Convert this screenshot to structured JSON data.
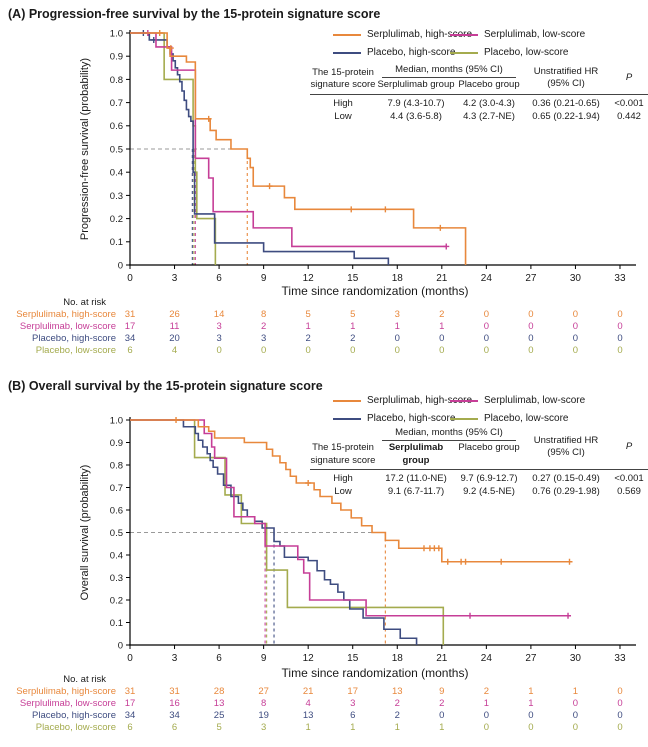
{
  "colors": {
    "serp_high": "#E8883C",
    "serp_low": "#C63E97",
    "plac_high": "#3E4C80",
    "plac_low": "#A4AB4E",
    "guide": "#999999",
    "text": "#1a1a1a"
  },
  "x_axis": {
    "label": "Time since randomization (months)",
    "ticks": [
      0,
      3,
      6,
      9,
      12,
      15,
      18,
      21,
      24,
      27,
      30,
      33
    ]
  },
  "y_axis": {
    "ticks": [
      "1.0",
      "0.9",
      "0.8",
      "0.7",
      "0.6",
      "0.5",
      "0.4",
      "0.3",
      "0.2",
      "0.1",
      "0"
    ]
  },
  "risk_header": "No. at risk",
  "legend": [
    {
      "label": "Serplulimab, high-score",
      "color_key": "serp_high"
    },
    {
      "label": "Serplulimab, low-score",
      "color_key": "serp_low"
    },
    {
      "label": "Placebo, high-score",
      "color_key": "plac_high"
    },
    {
      "label": "Placebo, low-score",
      "color_key": "plac_low"
    }
  ],
  "panels": [
    {
      "title": "(A) Progression-free survival by the 15-protein signature score",
      "y_label": "Progression-free survival (probability)",
      "table": {
        "stub_line1": "The 15-protein",
        "stub_line2": "signature score",
        "median_header": "Median, months (95% CI)",
        "col_serp": "Serplulimab group",
        "col_plac": "Placebo group",
        "hr_line1": "Unstratified HR",
        "hr_line2": "(95% CI)",
        "p_header": "P",
        "rows": [
          {
            "label": "High",
            "serp": "7.9 (4.3-10.7)",
            "plac": "4.2 (3.0-4.3)",
            "hr": "0.36 (0.21-0.65)",
            "p": "<0.001"
          },
          {
            "label": "Low",
            "serp": "4.4 (3.6-5.8)",
            "plac": "4.3 (2.7-NE)",
            "hr": "0.65 (0.22-1.94)",
            "p": "0.442"
          }
        ]
      },
      "risk_rows": [
        {
          "label": "Serplulimab, high-score",
          "color_key": "serp_high",
          "values": [
            31,
            26,
            14,
            8,
            5,
            5,
            3,
            2,
            0,
            0,
            0,
            0
          ]
        },
        {
          "label": "Serplulimab, low-score",
          "color_key": "serp_low",
          "values": [
            17,
            11,
            3,
            2,
            1,
            1,
            1,
            1,
            0,
            0,
            0,
            0
          ]
        },
        {
          "label": "Placebo, high-score",
          "color_key": "plac_high",
          "values": [
            34,
            20,
            3,
            3,
            2,
            2,
            0,
            0,
            0,
            0,
            0,
            0
          ]
        },
        {
          "label": "Placebo, low-score",
          "color_key": "plac_low",
          "values": [
            6,
            4,
            0,
            0,
            0,
            0,
            0,
            0,
            0,
            0,
            0,
            0
          ]
        }
      ]
    },
    {
      "title": "(B) Overall survival by the 15-protein signature score",
      "y_label": "Overall survival (probability)",
      "table": {
        "stub_line1": "The 15-protein",
        "stub_line2": "signature score",
        "median_header": "Median, months (95% CI)",
        "col_serp": "Serplulimab group",
        "col_plac": "Placebo group",
        "hr_line1": "Unstratified HR",
        "hr_line2": "(95% CI)",
        "p_header": "P",
        "rows": [
          {
            "label": "High",
            "serp": "17.2 (11.0-NE)",
            "plac": "9.7 (6.9-12.7)",
            "hr": "0.27 (0.15-0.49)",
            "p": "<0.001"
          },
          {
            "label": "Low",
            "serp": "9.1 (6.7-11.7)",
            "plac": "9.2 (4.5-NE)",
            "hr": "0.76 (0.29-1.98)",
            "p": "0.569"
          }
        ]
      },
      "risk_rows": [
        {
          "label": "Serplulimab, high-score",
          "color_key": "serp_high",
          "values": [
            31,
            31,
            28,
            27,
            21,
            17,
            13,
            9,
            2,
            1,
            1,
            0
          ]
        },
        {
          "label": "Serplulimab, low-score",
          "color_key": "serp_low",
          "values": [
            17,
            16,
            13,
            8,
            4,
            3,
            2,
            2,
            1,
            1,
            0,
            0
          ]
        },
        {
          "label": "Placebo, high-score",
          "color_key": "plac_high",
          "values": [
            34,
            34,
            25,
            19,
            13,
            6,
            2,
            0,
            0,
            0,
            0,
            0
          ]
        },
        {
          "label": "Placebo, low-score",
          "color_key": "plac_low",
          "values": [
            6,
            6,
            5,
            3,
            1,
            1,
            1,
            1,
            0,
            0,
            0,
            0
          ]
        }
      ]
    }
  ],
  "chart_data": [
    {
      "type": "line",
      "subtype": "kaplan-meier-step",
      "title": "Progression-free survival by the 15-protein signature score",
      "xlabel": "Time since randomization (months)",
      "ylabel": "Progression-free survival (probability)",
      "xlim": [
        0,
        33
      ],
      "ylim": [
        0,
        1
      ],
      "x_ticks_step": 3,
      "y_ticks_step": 0.1,
      "guide_probability": 0.5,
      "legend_position": "top-right",
      "grid": false,
      "series": [
        {
          "name": "Serplulimab, high-score",
          "color_key": "serp_high",
          "median_months": 7.9,
          "steps": [
            [
              0,
              1.0
            ],
            [
              2.5,
              0.935
            ],
            [
              2.7,
              0.9
            ],
            [
              3.8,
              0.875
            ],
            [
              4.4,
              0.63
            ],
            [
              5.4,
              0.58
            ],
            [
              5.8,
              0.54
            ],
            [
              6.8,
              0.5
            ],
            [
              7.9,
              0.46
            ],
            [
              8.1,
              0.42
            ],
            [
              8.3,
              0.34
            ],
            [
              10.4,
              0.29
            ],
            [
              11.1,
              0.24
            ],
            [
              19.1,
              0.16
            ],
            [
              22.6,
              0
            ]
          ],
          "censors": [
            [
              2.0,
              1.0
            ],
            [
              2.75,
              0.935
            ],
            [
              5.3,
              0.63
            ],
            [
              9.4,
              0.34
            ],
            [
              14.9,
              0.24
            ],
            [
              17.2,
              0.24
            ],
            [
              20.9,
              0.16
            ]
          ]
        },
        {
          "name": "Serplulimab, low-score",
          "color_key": "serp_low",
          "median_months": 4.4,
          "steps": [
            [
              0,
              1.0
            ],
            [
              1.75,
              0.94
            ],
            [
              2.8,
              0.84
            ],
            [
              4.4,
              0.46
            ],
            [
              5.3,
              0.375
            ],
            [
              5.6,
              0.23
            ],
            [
              8.3,
              0.16
            ],
            [
              10.9,
              0.08
            ],
            [
              21.3,
              0.08
            ]
          ],
          "censors": [
            [
              1.2,
              1.0
            ],
            [
              21.3,
              0.08
            ]
          ]
        },
        {
          "name": "Placebo, high-score",
          "color_key": "plac_high",
          "median_months": 4.2,
          "steps": [
            [
              0,
              1.0
            ],
            [
              1.3,
              0.97
            ],
            [
              2.5,
              0.94
            ],
            [
              2.7,
              0.91
            ],
            [
              2.9,
              0.88
            ],
            [
              3.05,
              0.85
            ],
            [
              3.2,
              0.82
            ],
            [
              3.35,
              0.79
            ],
            [
              3.5,
              0.75
            ],
            [
              3.65,
              0.71
            ],
            [
              3.8,
              0.67
            ],
            [
              3.95,
              0.64
            ],
            [
              4.1,
              0.62
            ],
            [
              4.25,
              0.4
            ],
            [
              4.35,
              0.22
            ],
            [
              5.7,
              0.095
            ],
            [
              9.0,
              0.058
            ],
            [
              15.1,
              0.029
            ],
            [
              17.4,
              0
            ]
          ],
          "censors": [
            [
              0.9,
              1.0
            ],
            [
              1.6,
              0.97
            ]
          ]
        },
        {
          "name": "Placebo, low-score",
          "color_key": "plac_low",
          "median_months": 4.3,
          "steps": [
            [
              0,
              1.0
            ],
            [
              2.3,
              0.8
            ],
            [
              4.25,
              0.6
            ],
            [
              4.4,
              0.4
            ],
            [
              4.5,
              0.2
            ],
            [
              5.75,
              0
            ]
          ],
          "censors": []
        }
      ]
    },
    {
      "type": "line",
      "subtype": "kaplan-meier-step",
      "title": "Overall survival by the 15-protein signature score",
      "xlabel": "Time since randomization (months)",
      "ylabel": "Overall survival (probability)",
      "xlim": [
        0,
        33
      ],
      "ylim": [
        0,
        1
      ],
      "x_ticks_step": 3,
      "y_ticks_step": 0.1,
      "guide_probability": 0.5,
      "legend_position": "top-right",
      "grid": false,
      "series": [
        {
          "name": "Serplulimab, high-score",
          "color_key": "serp_high",
          "median_months": 17.2,
          "steps": [
            [
              0,
              1.0
            ],
            [
              4.6,
              0.97
            ],
            [
              5.3,
              0.95
            ],
            [
              5.7,
              0.92
            ],
            [
              7.7,
              0.9
            ],
            [
              9.2,
              0.87
            ],
            [
              9.6,
              0.84
            ],
            [
              10.1,
              0.81
            ],
            [
              10.5,
              0.78
            ],
            [
              10.8,
              0.75
            ],
            [
              11.2,
              0.72
            ],
            [
              12.4,
              0.69
            ],
            [
              12.8,
              0.66
            ],
            [
              13.6,
              0.63
            ],
            [
              14.2,
              0.6
            ],
            [
              14.9,
              0.565
            ],
            [
              15.6,
              0.53
            ],
            [
              16.3,
              0.5
            ],
            [
              17.2,
              0.465
            ],
            [
              18.1,
              0.43
            ],
            [
              21.0,
              0.37
            ],
            [
              29.6,
              0.37
            ]
          ],
          "censors": [
            [
              3.1,
              1.0
            ],
            [
              12.0,
              0.72
            ],
            [
              19.8,
              0.43
            ],
            [
              20.2,
              0.43
            ],
            [
              20.5,
              0.43
            ],
            [
              20.8,
              0.43
            ],
            [
              21.4,
              0.37
            ],
            [
              22.3,
              0.37
            ],
            [
              22.6,
              0.37
            ],
            [
              25.0,
              0.37
            ],
            [
              29.6,
              0.37
            ]
          ]
        },
        {
          "name": "Serplulimab, low-score",
          "color_key": "serp_low",
          "median_months": 9.1,
          "steps": [
            [
              0,
              1.0
            ],
            [
              5.0,
              0.94
            ],
            [
              5.5,
              0.88
            ],
            [
              5.7,
              0.83
            ],
            [
              6.5,
              0.7
            ],
            [
              7.0,
              0.57
            ],
            [
              8.4,
              0.54
            ],
            [
              9.1,
              0.44
            ],
            [
              11.3,
              0.38
            ],
            [
              11.7,
              0.32
            ],
            [
              12.1,
              0.2
            ],
            [
              15.9,
              0.13
            ],
            [
              29.5,
              0.13
            ]
          ],
          "censors": [
            [
              22.9,
              0.13
            ],
            [
              29.5,
              0.13
            ]
          ]
        },
        {
          "name": "Placebo, high-score",
          "color_key": "plac_high",
          "median_months": 9.7,
          "steps": [
            [
              0,
              1.0
            ],
            [
              3.6,
              0.97
            ],
            [
              4.4,
              0.94
            ],
            [
              4.6,
              0.91
            ],
            [
              4.9,
              0.88
            ],
            [
              5.2,
              0.85
            ],
            [
              5.4,
              0.82
            ],
            [
              5.6,
              0.79
            ],
            [
              5.9,
              0.76
            ],
            [
              6.3,
              0.71
            ],
            [
              6.8,
              0.66
            ],
            [
              7.3,
              0.63
            ],
            [
              7.6,
              0.6
            ],
            [
              7.9,
              0.57
            ],
            [
              8.4,
              0.55
            ],
            [
              8.9,
              0.52
            ],
            [
              9.7,
              0.46
            ],
            [
              10.1,
              0.44
            ],
            [
              10.4,
              0.39
            ],
            [
              12.0,
              0.375
            ],
            [
              12.6,
              0.33
            ],
            [
              13.1,
              0.29
            ],
            [
              13.5,
              0.27
            ],
            [
              14.0,
              0.235
            ],
            [
              14.4,
              0.2
            ],
            [
              14.8,
              0.16
            ],
            [
              15.7,
              0.12
            ],
            [
              17.1,
              0.07
            ],
            [
              18.2,
              0.03
            ],
            [
              19.3,
              0
            ]
          ],
          "censors": []
        },
        {
          "name": "Placebo, low-score",
          "color_key": "plac_low",
          "median_months": 9.2,
          "steps": [
            [
              0,
              1.0
            ],
            [
              4.35,
              0.833
            ],
            [
              6.4,
              0.667
            ],
            [
              7.5,
              0.54
            ],
            [
              9.2,
              0.333
            ],
            [
              10.6,
              0.167
            ],
            [
              21.1,
              0
            ]
          ],
          "censors": []
        }
      ]
    }
  ]
}
